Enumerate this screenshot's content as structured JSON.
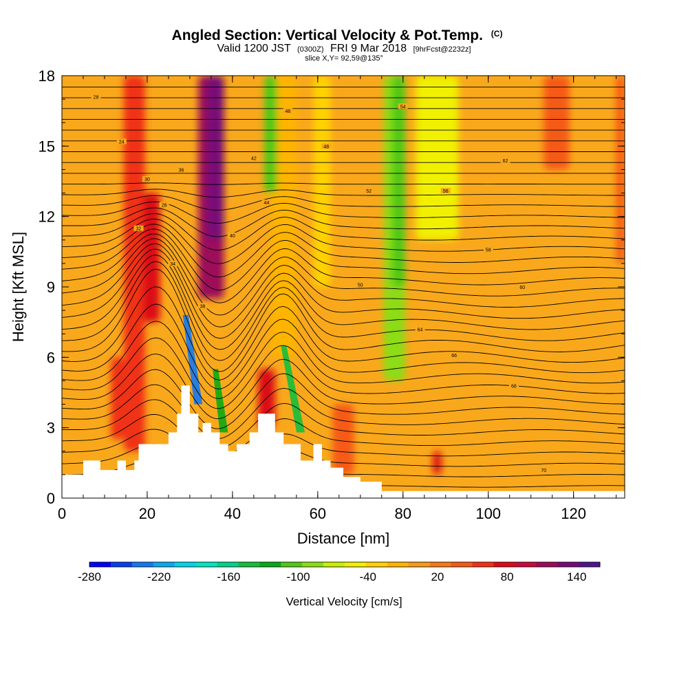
{
  "chart_data": {
    "type": "heatmap",
    "title": "Angled Section: Vertical Velocity & Pot.Temp.",
    "title_unit": "(C)",
    "subtitle": {
      "prefix": "Valid 1200 JST",
      "utc": "(0300Z)",
      "date": "FRI 9 Mar 2018",
      "forecast": "[9hrFcst@2232z]"
    },
    "slice_label": "slice X,Y= 92,59@135°",
    "xlabel": "Distance [nm]",
    "ylabel": "Height [Kft MSL]",
    "xlim": [
      0,
      132
    ],
    "ylim": [
      0,
      18
    ],
    "x_ticks": [
      "0",
      "20",
      "40",
      "60",
      "80",
      "100",
      "120"
    ],
    "y_ticks": [
      "0",
      "3",
      "6",
      "9",
      "12",
      "15",
      "18"
    ],
    "background": "#F9A81C",
    "vertical_velocity_bands": [
      {
        "x": 17,
        "width": 5,
        "z_bottom": 2.0,
        "z_top": 18,
        "value": 60
      },
      {
        "x": 21,
        "width": 4,
        "z_bottom": 7.5,
        "z_top": 13,
        "value": 80
      },
      {
        "x": 35,
        "width": 6,
        "z_bottom": 8.5,
        "z_top": 18,
        "value": 120
      },
      {
        "x": 36,
        "width": 4,
        "z_bottom": 11,
        "z_top": 18,
        "value": 140
      },
      {
        "x": 13,
        "width": 3,
        "z_bottom": 2.5,
        "z_top": 6,
        "value": 60
      },
      {
        "x": 48,
        "width": 4,
        "z_bottom": 3.0,
        "z_top": 5.5,
        "value": 80
      },
      {
        "x": 52,
        "width": 6,
        "z_bottom": 6,
        "z_top": 18,
        "value": -10
      },
      {
        "x": 61,
        "width": 4,
        "z_bottom": 9,
        "z_top": 18,
        "value": -40
      },
      {
        "x": 78,
        "width": 5,
        "z_bottom": 5,
        "z_top": 18,
        "value": -80
      },
      {
        "x": 79,
        "width": 3,
        "z_bottom": 9,
        "z_top": 18,
        "value": -100
      },
      {
        "x": 88,
        "width": 10,
        "z_bottom": 11,
        "z_top": 18,
        "value": -60
      },
      {
        "x": 49,
        "width": 3,
        "z_bottom": 13,
        "z_top": 18,
        "value": -110
      },
      {
        "x": 116,
        "width": 6,
        "z_bottom": 14,
        "z_top": 18,
        "value": 40
      },
      {
        "x": 131,
        "width": 2,
        "z_bottom": 10,
        "z_top": 18,
        "value": 40
      },
      {
        "x": 66,
        "width": 5,
        "z_bottom": 1,
        "z_top": 4,
        "value": 40
      },
      {
        "x": 88,
        "width": 2,
        "z_bottom": 1,
        "z_top": 2,
        "value": 80
      }
    ],
    "downdraft_lines": [
      {
        "x_top": 29,
        "z_top": 7.8,
        "x_bottom": 32,
        "z_bottom": 4.0,
        "value": -240
      },
      {
        "x_top": 36,
        "z_top": 5.5,
        "x_bottom": 38,
        "z_bottom": 2.8,
        "value": -120
      },
      {
        "x_top": 52,
        "z_top": 6.5,
        "x_bottom": 56,
        "z_bottom": 2.8,
        "value": -150
      }
    ],
    "terrain": [
      [
        0,
        1.0
      ],
      [
        5,
        1.0
      ],
      [
        5,
        1.6
      ],
      [
        9,
        1.6
      ],
      [
        9,
        1.2
      ],
      [
        13,
        1.2
      ],
      [
        13,
        1.6
      ],
      [
        15,
        1.6
      ],
      [
        15,
        1.2
      ],
      [
        17,
        1.2
      ],
      [
        17,
        1.6
      ],
      [
        18,
        1.6
      ],
      [
        18,
        2.3
      ],
      [
        25,
        2.3
      ],
      [
        25,
        2.8
      ],
      [
        27,
        2.8
      ],
      [
        27,
        3.6
      ],
      [
        28,
        3.6
      ],
      [
        28,
        4.8
      ],
      [
        30,
        4.8
      ],
      [
        30,
        3.6
      ],
      [
        32,
        3.6
      ],
      [
        32,
        2.8
      ],
      [
        33,
        2.8
      ],
      [
        33,
        3.2
      ],
      [
        35,
        3.2
      ],
      [
        35,
        2.8
      ],
      [
        37,
        2.8
      ],
      [
        37,
        2.3
      ],
      [
        39,
        2.3
      ],
      [
        39,
        2.0
      ],
      [
        41,
        2.0
      ],
      [
        41,
        2.3
      ],
      [
        44,
        2.3
      ],
      [
        44,
        2.8
      ],
      [
        46,
        2.8
      ],
      [
        46,
        3.6
      ],
      [
        50,
        3.6
      ],
      [
        50,
        2.8
      ],
      [
        52,
        2.8
      ],
      [
        52,
        2.3
      ],
      [
        56,
        2.3
      ],
      [
        56,
        1.6
      ],
      [
        59,
        1.6
      ],
      [
        59,
        2.3
      ],
      [
        61,
        2.3
      ],
      [
        61,
        1.6
      ],
      [
        63,
        1.6
      ],
      [
        63,
        1.3
      ],
      [
        66,
        1.3
      ],
      [
        66,
        0.9
      ],
      [
        70,
        0.9
      ],
      [
        70,
        0.7
      ],
      [
        75,
        0.7
      ],
      [
        75,
        0.3
      ],
      [
        132,
        0.3
      ]
    ],
    "isentrope_labels": [
      "28",
      "24",
      "30",
      "26",
      "32",
      "36",
      "34",
      "38",
      "40",
      "42",
      "44",
      "46",
      "48",
      "50",
      "52",
      "54",
      "56",
      "58",
      "60",
      "62",
      "64",
      "66",
      "68",
      "70"
    ],
    "colorbar": {
      "label": "Vertical Velocity [cm/s]",
      "tick_labels": [
        "-280",
        "-220",
        "-160",
        "-100",
        "-40",
        "20",
        "80",
        "140"
      ],
      "colors": [
        "#0000FF",
        "#0A3FF0",
        "#1478F2",
        "#0AA8F0",
        "#00D3EA",
        "#00E6C2",
        "#00D28C",
        "#14BE3C",
        "#0AAA14",
        "#50C814",
        "#8CDC14",
        "#C8F000",
        "#F0F000",
        "#FFD200",
        "#FFB400",
        "#F99A14",
        "#F77814",
        "#F55A14",
        "#F03214",
        "#DC0A14",
        "#C80A3C",
        "#9C0A5A",
        "#780A78",
        "#50148C"
      ],
      "min": -280,
      "max": 160
    }
  }
}
